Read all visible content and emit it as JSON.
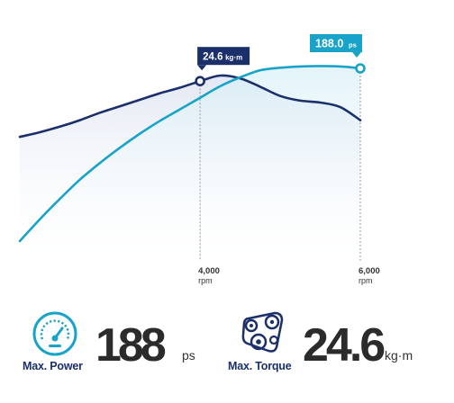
{
  "chart_data": {
    "type": "line",
    "x_unit": "rpm",
    "x_ticks": [
      {
        "value": 4000,
        "label": "4,000",
        "unit": "rpm"
      },
      {
        "value": 6000,
        "label": "6,000",
        "unit": "rpm"
      }
    ],
    "series": [
      {
        "name": "Max. Torque",
        "color": "#1b2f6b",
        "area_color": "#e8ecf5",
        "x": [
          1750,
          2000,
          2250,
          2500,
          2750,
          3000,
          3250,
          3500,
          3750,
          4000,
          4250,
          4500,
          4750,
          5000,
          5250,
          5500,
          5750,
          6000
        ],
        "y": [
          21.3,
          21.55,
          21.85,
          22.2,
          22.6,
          22.95,
          23.3,
          23.65,
          23.95,
          24.3,
          24.6,
          24.45,
          24.0,
          23.5,
          23.25,
          23.15,
          22.9,
          22.2
        ]
      },
      {
        "name": "Max. Power",
        "color": "#1aa3c9",
        "x": [
          1750,
          2000,
          2250,
          2500,
          2750,
          3000,
          3250,
          3500,
          3750,
          4000,
          4250,
          4500,
          4750,
          5000,
          5250,
          5500,
          5750,
          6000
        ],
        "y": [
          53,
          70,
          86,
          101,
          114,
          126,
          137,
          147,
          156,
          165,
          174,
          181,
          186.5,
          188.5,
          189.5,
          189.8,
          189.5,
          188.0
        ]
      }
    ],
    "callouts": [
      {
        "series": "Max. Torque",
        "x": 4000,
        "value": "24.6",
        "unit": "kg·m",
        "color": "#1b2f6b"
      },
      {
        "series": "Max. Power",
        "x": 6000,
        "value": "188.0",
        "unit": "ps",
        "color": "#1aa3c9"
      }
    ]
  },
  "specs": {
    "power": {
      "icon": "speedometer-icon",
      "color": "#1aa3c9",
      "label": "Max. Power",
      "value": "188",
      "unit": "ps"
    },
    "torque": {
      "icon": "belt-pulley-icon",
      "color": "#1b2f6b",
      "label": "Max. Torque",
      "value": "24.6",
      "unit": "kg·m"
    }
  }
}
